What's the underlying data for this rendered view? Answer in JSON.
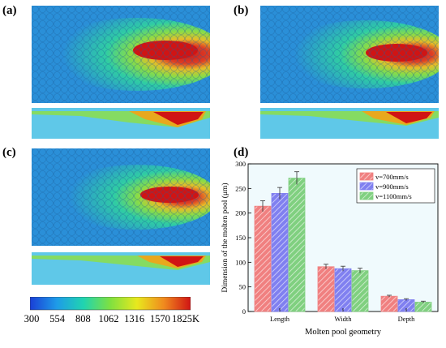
{
  "panels": {
    "a": "(a)",
    "b": "(b)",
    "c": "(c)",
    "d": "(d)"
  },
  "colorbar": {
    "ticks": [
      "300",
      "554",
      "808",
      "1062",
      "1316",
      "1570",
      "1825K"
    ],
    "colors": [
      "#1a3fd6",
      "#1e9be8",
      "#20d4b0",
      "#7fe040",
      "#e8e81e",
      "#f08a1e",
      "#d01414"
    ]
  },
  "chart_data": {
    "type": "bar",
    "xlabel": "Molten pool geometry",
    "ylabel": "Dimension of the molten pool (μm)",
    "categories": [
      "Length",
      "Width",
      "Depth"
    ],
    "ylim": [
      0,
      300
    ],
    "yticks": [
      "0",
      "50",
      "100",
      "150",
      "200",
      "250",
      "300"
    ],
    "legend_position": "top-right",
    "series": [
      {
        "name": "v=700mm/s",
        "values": [
          214,
          91,
          31
        ],
        "errors": [
          11,
          5,
          2
        ],
        "color": "#f08080"
      },
      {
        "name": "v=900mm/s",
        "values": [
          240,
          87,
          24
        ],
        "errors": [
          12,
          5,
          2
        ],
        "color": "#8080f0"
      },
      {
        "name": "v=1100mm/s",
        "values": [
          271,
          83,
          19
        ],
        "errors": [
          13,
          5,
          2
        ],
        "color": "#80d080"
      }
    ]
  }
}
